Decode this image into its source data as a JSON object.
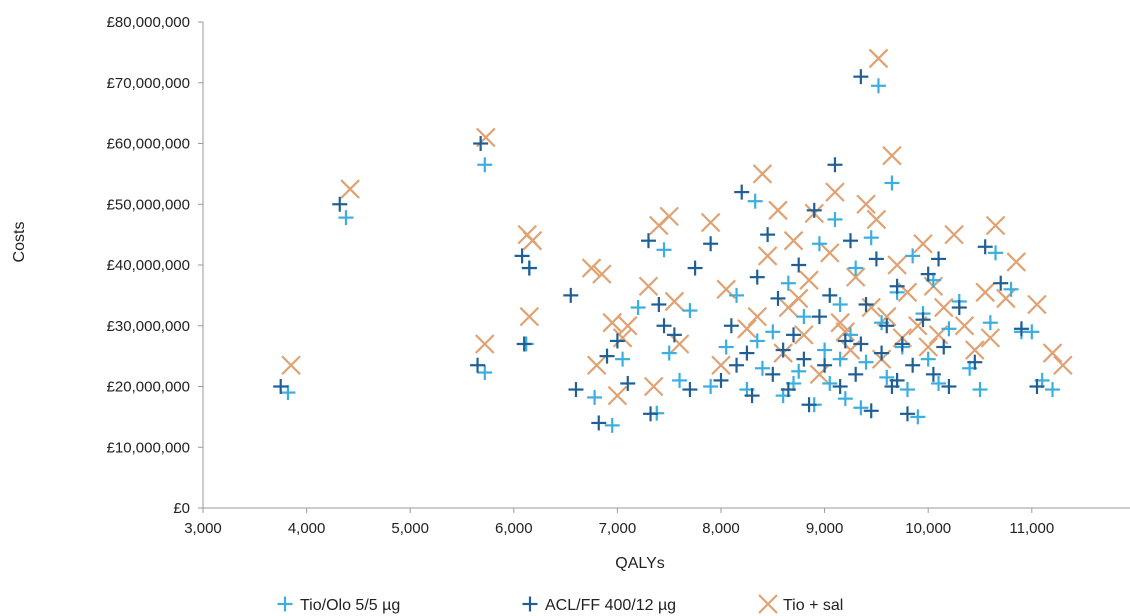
{
  "chart_data": {
    "type": "scatter",
    "title": "",
    "xlabel": "QALYs",
    "ylabel": "Costs",
    "xlim": [
      3000,
      11300
    ],
    "ylim": [
      0,
      80000000
    ],
    "x_ticks": [
      3000,
      4000,
      5000,
      6000,
      7000,
      8000,
      9000,
      10000,
      11000
    ],
    "x_tick_labels": [
      "3,000",
      "4,000",
      "5,000",
      "6,000",
      "7,000",
      "8,000",
      "9,000",
      "10,000",
      "11,000"
    ],
    "y_ticks": [
      0,
      10000000,
      20000000,
      30000000,
      40000000,
      50000000,
      60000000,
      70000000,
      80000000
    ],
    "y_tick_labels": [
      "£0",
      "£10,000,000",
      "£20,000,000",
      "£30,000,000",
      "£40,000,000",
      "£50,000,000",
      "£60,000,000",
      "£70,000,000",
      "£80,000,000"
    ],
    "grid": false,
    "legend_position": "bottom",
    "series": [
      {
        "name": "Tio/Olo 5/5 µg",
        "marker": "plus",
        "color": "#3aaee0",
        "points": [
          [
            3820,
            19000000
          ],
          [
            4380,
            47800000
          ],
          [
            5720,
            56500000
          ],
          [
            5720,
            22300000
          ],
          [
            6120,
            27000000
          ],
          [
            6150,
            39500000
          ],
          [
            6780,
            18200000
          ],
          [
            6950,
            13600000
          ],
          [
            7050,
            24500000
          ],
          [
            7380,
            15600000
          ],
          [
            7450,
            42500000
          ],
          [
            7600,
            21000000
          ],
          [
            7700,
            32500000
          ],
          [
            7900,
            20000000
          ],
          [
            8050,
            26500000
          ],
          [
            8150,
            35000000
          ],
          [
            8250,
            19500000
          ],
          [
            8330,
            50500000
          ],
          [
            8400,
            23000000
          ],
          [
            8500,
            29000000
          ],
          [
            8600,
            18500000
          ],
          [
            8650,
            37000000
          ],
          [
            8750,
            22500000
          ],
          [
            8800,
            31500000
          ],
          [
            8900,
            17000000
          ],
          [
            8950,
            43500000
          ],
          [
            9000,
            26000000
          ],
          [
            9050,
            20500000
          ],
          [
            9100,
            47500000
          ],
          [
            9150,
            33500000
          ],
          [
            9200,
            18000000
          ],
          [
            9250,
            28500000
          ],
          [
            9300,
            39500000
          ],
          [
            9350,
            16500000
          ],
          [
            9400,
            24000000
          ],
          [
            9450,
            44500000
          ],
          [
            9520,
            69500000
          ],
          [
            9550,
            30500000
          ],
          [
            9600,
            21500000
          ],
          [
            9650,
            53500000
          ],
          [
            9700,
            35500000
          ],
          [
            9750,
            26500000
          ],
          [
            9800,
            19500000
          ],
          [
            9850,
            41500000
          ],
          [
            9900,
            15000000
          ],
          [
            9950,
            32000000
          ],
          [
            10000,
            24500000
          ],
          [
            10050,
            37500000
          ],
          [
            10100,
            20500000
          ],
          [
            10200,
            29500000
          ],
          [
            10300,
            34000000
          ],
          [
            10400,
            23000000
          ],
          [
            10500,
            19500000
          ],
          [
            10600,
            30500000
          ],
          [
            10650,
            42000000
          ],
          [
            10800,
            36000000
          ],
          [
            10900,
            29000000
          ],
          [
            11000,
            29000000
          ],
          [
            11100,
            21000000
          ],
          [
            11200,
            19500000
          ],
          [
            7200,
            33000000
          ],
          [
            7500,
            25500000
          ],
          [
            8350,
            27500000
          ],
          [
            8700,
            20500000
          ],
          [
            9150,
            24500000
          ]
        ]
      },
      {
        "name": "ACL/FF 400/12 µg",
        "marker": "plus",
        "color": "#1f5f95",
        "points": [
          [
            3750,
            20000000
          ],
          [
            4320,
            50000000
          ],
          [
            5650,
            23500000
          ],
          [
            5680,
            60000000
          ],
          [
            6080,
            41500000
          ],
          [
            6100,
            27000000
          ],
          [
            6150,
            39500000
          ],
          [
            6550,
            35000000
          ],
          [
            6600,
            19500000
          ],
          [
            6820,
            14000000
          ],
          [
            6900,
            25000000
          ],
          [
            7000,
            27500000
          ],
          [
            7100,
            20500000
          ],
          [
            7300,
            44000000
          ],
          [
            7320,
            15500000
          ],
          [
            7400,
            33500000
          ],
          [
            7450,
            30000000
          ],
          [
            7550,
            28500000
          ],
          [
            7700,
            19500000
          ],
          [
            7750,
            39500000
          ],
          [
            7900,
            43500000
          ],
          [
            8000,
            21000000
          ],
          [
            8100,
            30000000
          ],
          [
            8200,
            52000000
          ],
          [
            8250,
            25500000
          ],
          [
            8300,
            18500000
          ],
          [
            8350,
            38000000
          ],
          [
            8450,
            45000000
          ],
          [
            8500,
            22000000
          ],
          [
            8550,
            34500000
          ],
          [
            8600,
            26000000
          ],
          [
            8650,
            19500000
          ],
          [
            8700,
            28500000
          ],
          [
            8750,
            40000000
          ],
          [
            8850,
            17000000
          ],
          [
            8900,
            49000000
          ],
          [
            8950,
            31500000
          ],
          [
            9000,
            23500000
          ],
          [
            9050,
            35000000
          ],
          [
            9100,
            56500000
          ],
          [
            9150,
            20000000
          ],
          [
            9200,
            27500000
          ],
          [
            9250,
            44000000
          ],
          [
            9300,
            22000000
          ],
          [
            9350,
            71000000
          ],
          [
            9400,
            33500000
          ],
          [
            9450,
            16000000
          ],
          [
            9500,
            41000000
          ],
          [
            9550,
            25500000
          ],
          [
            9600,
            30000000
          ],
          [
            9650,
            20000000
          ],
          [
            9700,
            36500000
          ],
          [
            9750,
            27000000
          ],
          [
            9800,
            15500000
          ],
          [
            9850,
            23500000
          ],
          [
            9950,
            31000000
          ],
          [
            10000,
            38500000
          ],
          [
            10050,
            22000000
          ],
          [
            10100,
            41000000
          ],
          [
            10200,
            20000000
          ],
          [
            10300,
            33000000
          ],
          [
            10450,
            24000000
          ],
          [
            10550,
            43000000
          ],
          [
            10700,
            37000000
          ],
          [
            10900,
            29500000
          ],
          [
            11050,
            20000000
          ],
          [
            8150,
            23500000
          ],
          [
            8800,
            24500000
          ],
          [
            9350,
            27000000
          ],
          [
            9700,
            21000000
          ],
          [
            10150,
            26500000
          ]
        ]
      },
      {
        "name": "Tio + sal",
        "marker": "x",
        "color": "#e0a272",
        "points": [
          [
            3850,
            23500000
          ],
          [
            4420,
            52500000
          ],
          [
            5730,
            61000000
          ],
          [
            5720,
            27000000
          ],
          [
            6130,
            45000000
          ],
          [
            6150,
            31500000
          ],
          [
            6180,
            44000000
          ],
          [
            6750,
            39500000
          ],
          [
            6800,
            23500000
          ],
          [
            6850,
            38500000
          ],
          [
            6950,
            30500000
          ],
          [
            7000,
            18500000
          ],
          [
            7050,
            28000000
          ],
          [
            7100,
            30000000
          ],
          [
            7300,
            36500000
          ],
          [
            7350,
            20000000
          ],
          [
            7400,
            46500000
          ],
          [
            7500,
            48000000
          ],
          [
            7550,
            34000000
          ],
          [
            7600,
            27000000
          ],
          [
            7900,
            47000000
          ],
          [
            8000,
            23500000
          ],
          [
            8050,
            36000000
          ],
          [
            8250,
            29500000
          ],
          [
            8400,
            55000000
          ],
          [
            8450,
            41500000
          ],
          [
            8550,
            49000000
          ],
          [
            8600,
            25500000
          ],
          [
            8650,
            33000000
          ],
          [
            8700,
            44000000
          ],
          [
            8800,
            28500000
          ],
          [
            8850,
            37500000
          ],
          [
            8900,
            48500000
          ],
          [
            8950,
            22000000
          ],
          [
            9050,
            42000000
          ],
          [
            9100,
            52000000
          ],
          [
            9150,
            30500000
          ],
          [
            9250,
            26000000
          ],
          [
            9300,
            38000000
          ],
          [
            9400,
            50000000
          ],
          [
            9450,
            33000000
          ],
          [
            9500,
            47500000
          ],
          [
            9520,
            74000000
          ],
          [
            9550,
            24500000
          ],
          [
            9650,
            58000000
          ],
          [
            9700,
            40000000
          ],
          [
            9750,
            28000000
          ],
          [
            9800,
            35500000
          ],
          [
            9900,
            30000000
          ],
          [
            9950,
            43500000
          ],
          [
            10000,
            26500000
          ],
          [
            10050,
            36500000
          ],
          [
            10150,
            33000000
          ],
          [
            10250,
            45000000
          ],
          [
            10350,
            30000000
          ],
          [
            10450,
            26000000
          ],
          [
            10550,
            35500000
          ],
          [
            10650,
            46500000
          ],
          [
            10750,
            34500000
          ],
          [
            10850,
            40500000
          ],
          [
            11050,
            33500000
          ],
          [
            11200,
            25500000
          ],
          [
            11300,
            23500000
          ],
          [
            8350,
            31500000
          ],
          [
            8750,
            34500000
          ],
          [
            9200,
            29000000
          ],
          [
            9600,
            31500000
          ],
          [
            10100,
            28500000
          ],
          [
            10600,
            28000000
          ]
        ]
      }
    ]
  }
}
